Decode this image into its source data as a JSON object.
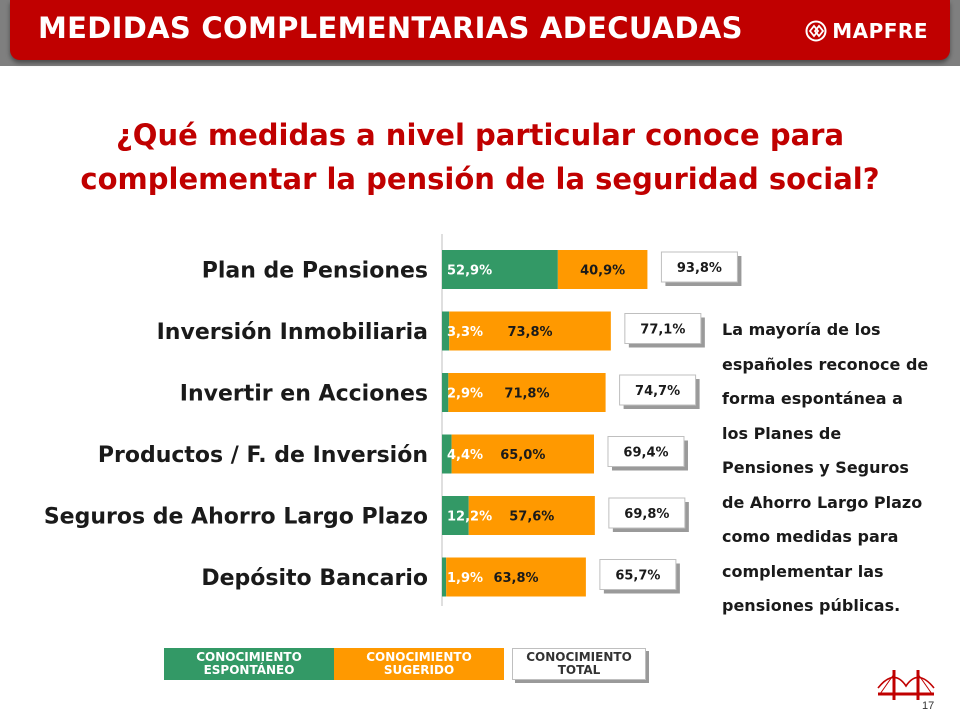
{
  "header": {
    "title": "MEDIDAS COMPLEMENTARIAS ADECUADAS",
    "logo_text": "MAPFRE"
  },
  "question": "¿Qué medidas a nivel particular conoce para complementar la pensión de la seguridad social?",
  "colors": {
    "brand_red": "#c00000",
    "spontaneous": "#339966",
    "suggested": "#ff9900"
  },
  "chart_data": {
    "type": "bar",
    "orientation": "horizontal",
    "stacked": true,
    "categories": [
      "Plan de Pensiones",
      "Inversión Inmobiliaria",
      "Invertir en Acciones",
      "Productos / F. de Inversión",
      "Seguros de Ahorro Largo Plazo",
      "Depósito Bancario"
    ],
    "series": [
      {
        "name": "CONOCIMIENTO ESPONTÁNEO",
        "values": [
          52.9,
          3.3,
          2.9,
          4.4,
          12.2,
          1.9
        ],
        "labels": [
          "52,9%",
          "3,3%",
          "2,9%",
          "4,4%",
          "12,2%",
          "1,9%"
        ]
      },
      {
        "name": "CONOCIMIENTO SUGERIDO",
        "values": [
          40.9,
          73.8,
          71.8,
          65.0,
          57.6,
          63.8
        ],
        "labels": [
          "40,9%",
          "73,8%",
          "71,8%",
          "65,0%",
          "57,6%",
          "63,8%"
        ]
      }
    ],
    "totals": {
      "name": "CONOCIMIENTO TOTAL",
      "values": [
        93.8,
        77.1,
        74.7,
        69.4,
        69.8,
        65.7
      ],
      "labels": [
        "93,8%",
        "77,1%",
        "74,7%",
        "69,4%",
        "69,8%",
        "65,7%"
      ]
    },
    "xlim": [
      0,
      100
    ],
    "legend_position": "bottom",
    "grid": false
  },
  "legend": {
    "spontaneous": "CONOCIMIENTO ESPONTÁNEO",
    "suggested": "CONOCIMIENTO SUGERIDO",
    "total": "CONOCIMIENTO TOTAL"
  },
  "side_note": "La mayoría de los españoles reconoce de forma espontánea a los Planes de Pensiones y Seguros de Ahorro Largo Plazo como medidas para complementar las pensiones públicas.",
  "page_number": "17"
}
